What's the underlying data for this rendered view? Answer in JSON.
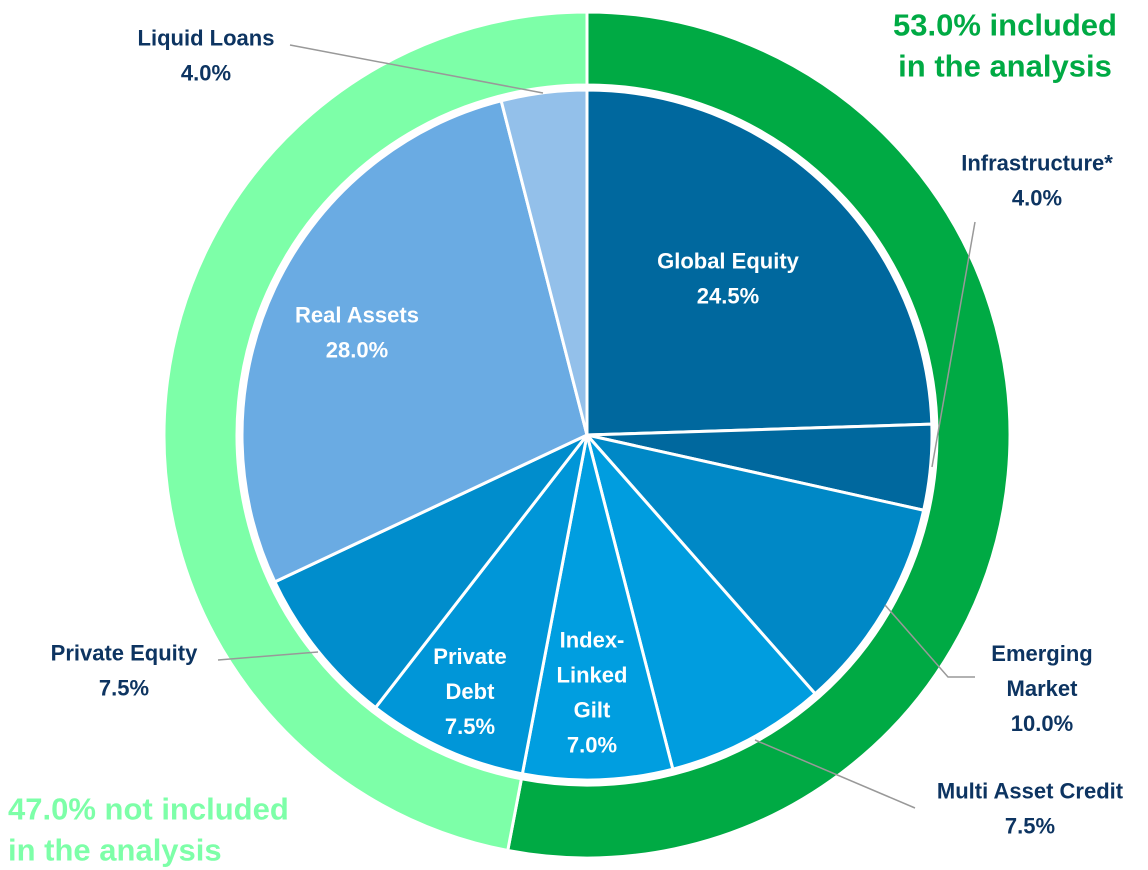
{
  "chart_data": [
    {
      "type": "pie",
      "categories": [
        "Global Equity",
        "Infrastructure*",
        "Emerging\nMarket",
        "Multi Asset Credit",
        "Index-\nLinked\nGilt",
        "Private\nDebt",
        "Private Equity",
        "Real Assets",
        "Liquid Loans"
      ],
      "values": [
        24.5,
        4.0,
        10.0,
        7.5,
        7.0,
        7.5,
        7.5,
        28.0,
        4.0
      ],
      "value_labels": [
        "24.5%",
        "4.0%",
        "10.0%",
        "7.5%",
        "7.0%",
        "7.5%",
        "7.5%",
        "28.0%",
        "4.0%"
      ],
      "colors": [
        "#00689e",
        "#00689e",
        "#0088c6",
        "#009ddf",
        "#009ee0",
        "#0096d8",
        "#008dcc",
        "#6aabe3",
        "#93c0ea"
      ]
    },
    {
      "type": "donut",
      "categories": [
        "53.0% included\nin the analysis",
        "47.0% not included\nin the analysis"
      ],
      "values": [
        53.0,
        47.0
      ],
      "colors": [
        "#00aa44",
        "#7dffa8"
      ]
    }
  ]
}
